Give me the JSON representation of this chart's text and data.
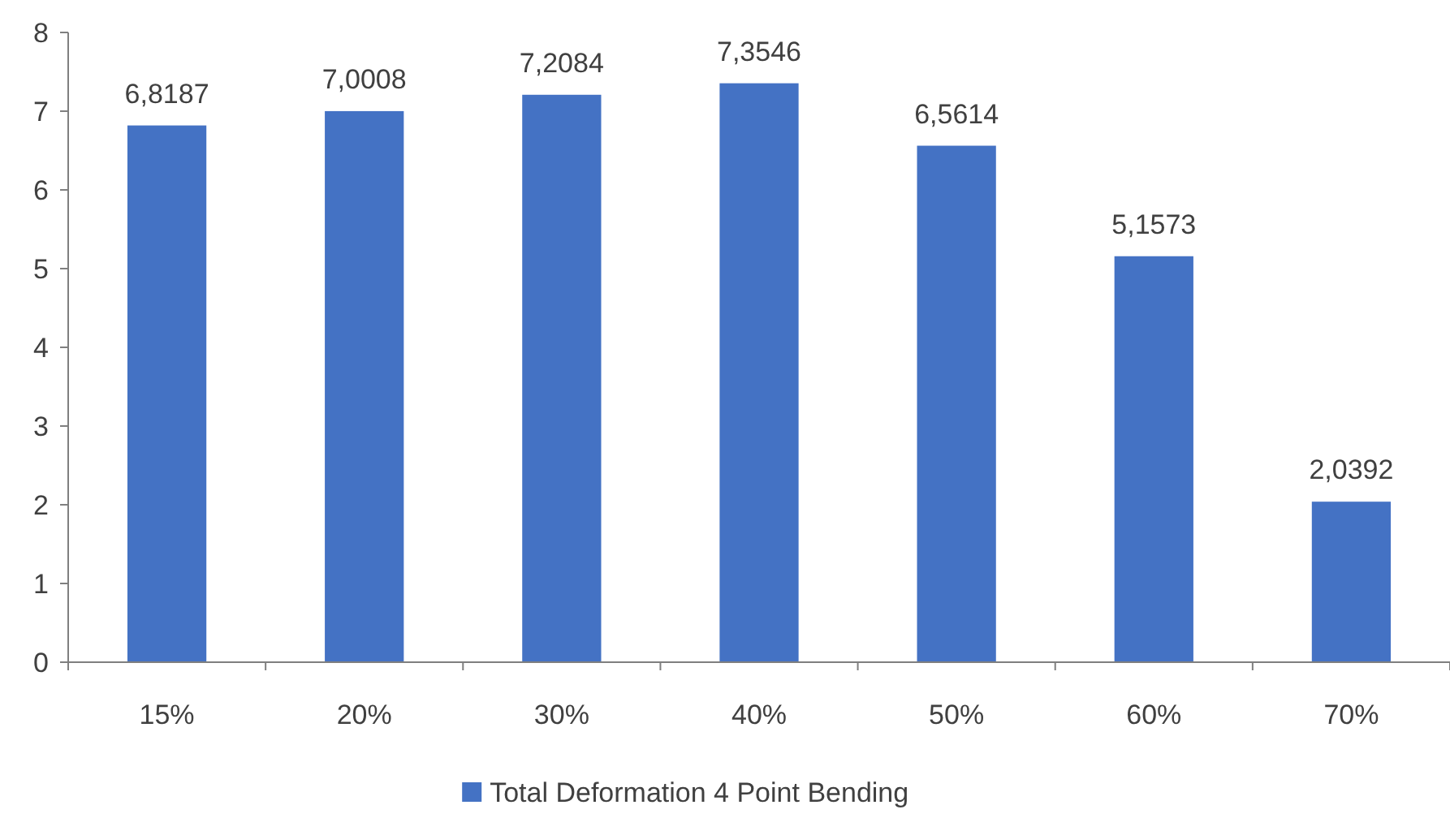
{
  "chart_data": {
    "type": "bar",
    "categories": [
      "15%",
      "20%",
      "30%",
      "40%",
      "50%",
      "60%",
      "70%"
    ],
    "series": [
      {
        "name": "Total Deformation 4 Point Bending",
        "color": "#4472c4",
        "values": [
          6.8187,
          7.0008,
          7.2084,
          7.3546,
          6.5614,
          5.1573,
          2.0392
        ],
        "value_labels": [
          "6,8187",
          "7,0008",
          "7,2084",
          "7,3546",
          "6,5614",
          "5,1573",
          "2,0392"
        ]
      }
    ],
    "ylim": [
      0,
      8
    ],
    "yticks": [
      0,
      1,
      2,
      3,
      4,
      5,
      6,
      7,
      8
    ],
    "grid": false,
    "legend": "bottom"
  }
}
